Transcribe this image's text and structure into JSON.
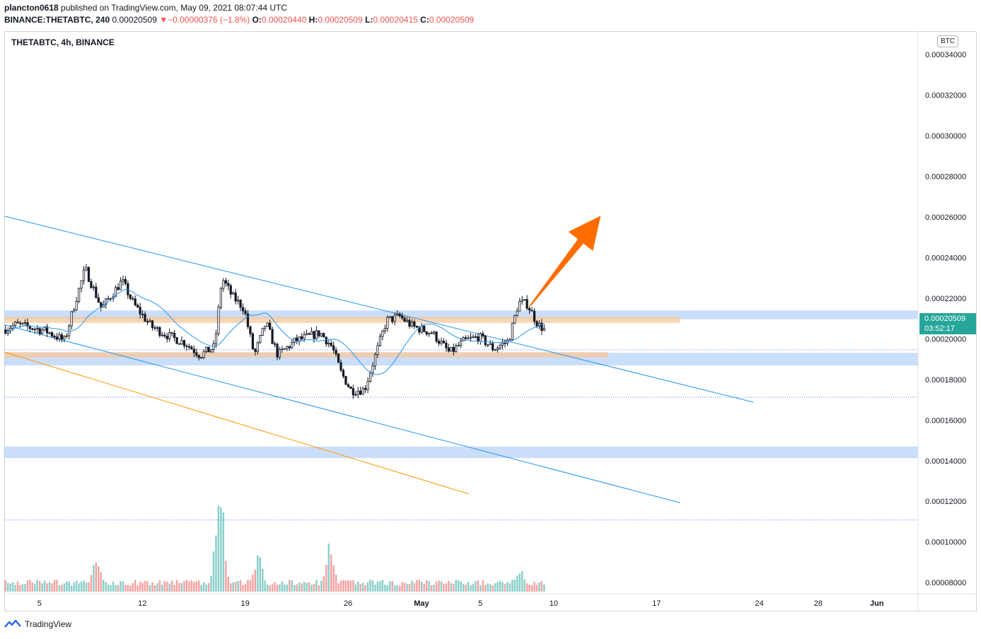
{
  "header": {
    "publisher": "plancton0618",
    "published_text": "published on TradingView.com, May 09, 2021 08:07:44 UTC",
    "pair": "BINANCE:THETABTC, 240",
    "last": "0.00020509",
    "change_arrow": "▼",
    "change": "−0.00000376 (−1.8%)",
    "o_label": "O:",
    "o_value": "0.00020440",
    "h_label": "H:",
    "h_value": "0.00020509",
    "l_label": "L:",
    "l_value": "0.00020415",
    "c_label": "C:",
    "c_value": "0.00020509"
  },
  "chart_title": "THETABTC, 4h, BINANCE",
  "currency_badge": "BTC",
  "price_tag": {
    "value": "0.00020509",
    "countdown": "03:52:17"
  },
  "footer": {
    "brand": "TradingView",
    "icon": "tradingview-logo-icon"
  },
  "colors": {
    "up": "#26a69a",
    "down": "#ef5350",
    "ma": "#2196f3",
    "channel": "#2196f3",
    "orange_line": "#ff9800",
    "arrow": "#ff6d00",
    "zone_blue": "#a9c8f5",
    "zone_orange": "#f5c89e"
  },
  "chart_data": {
    "type": "candlestick",
    "title": "THETABTC, 4h, BINANCE",
    "y_tick_labels": [
      "0.00034000",
      "0.00032000",
      "0.00030000",
      "0.00028000",
      "0.00026000",
      "0.00024000",
      "0.00022000",
      "0.00020000",
      "0.00018000",
      "0.00016000",
      "0.00014000",
      "0.00012000",
      "0.00010000",
      "0.00008000"
    ],
    "y_ticks": [
      0.00034,
      0.00032,
      0.0003,
      0.00028,
      0.00026,
      0.00024,
      0.00022,
      0.0002,
      0.00018,
      0.00016,
      0.00014,
      0.00012,
      0.0001,
      8e-05
    ],
    "ylim": [
      7.45e-05,
      0.0003515
    ],
    "x_tick_labels": [
      "5",
      "12",
      "19",
      "26",
      "May",
      "5",
      "10",
      "17",
      "24",
      "28",
      "Jun"
    ],
    "x_ticks_day": [
      5,
      12,
      19,
      26,
      31,
      35,
      40,
      47,
      54,
      58,
      62
    ],
    "xlim_day": [
      2.6,
      64.8
    ],
    "price_zones": [
      {
        "type": "support-resistance",
        "from": 0.00020965,
        "to": 0.000214,
        "color": "blue",
        "start_day": 2.6
      },
      {
        "type": "support-resistance",
        "from": 0.0001869,
        "to": 0.0001931,
        "color": "blue",
        "start_day": 2.6
      },
      {
        "type": "support-resistance",
        "from": 0.0001413,
        "to": 0.000147,
        "color": "blue",
        "start_day": 2.6
      },
      {
        "type": "highlight",
        "from": 0.00020785,
        "to": 0.000211,
        "color": "orange",
        "start_day": 2.6,
        "end_day": 48.6
      },
      {
        "type": "highlight",
        "from": 0.00019075,
        "to": 0.0001935,
        "color": "orange",
        "start_day": 2.6,
        "end_day": 43.7
      }
    ],
    "dotted_levels": [
      0.0001946,
      0.00017125,
      0.0001108
    ],
    "trendlines": [
      {
        "name": "channel-upper",
        "points": [
          [
            2.6,
            0.0002604
          ],
          [
            53.6,
            0.0001688
          ]
        ],
        "color": "blue"
      },
      {
        "name": "channel-lower",
        "points": [
          [
            2.6,
            0.0002069
          ],
          [
            48.6,
            0.0001193
          ]
        ],
        "color": "blue"
      },
      {
        "name": "orange-line",
        "points": [
          [
            2.6,
            0.0001935
          ],
          [
            34.2,
            0.0001237
          ]
        ],
        "color": "orange"
      }
    ],
    "projection_arrow": {
      "from": [
        38.4,
        0.0002163
      ],
      "to": [
        43.2,
        0.0002606
      ]
    },
    "ohlc_path": [
      [
        2.6,
        0.0002045
      ],
      [
        3.5,
        0.000207
      ],
      [
        5.5,
        0.000204
      ],
      [
        6.8,
        0.000199
      ],
      [
        7.5,
        0.000218
      ],
      [
        8.2,
        0.0002345
      ],
      [
        9.3,
        0.000215
      ],
      [
        10.7,
        0.0002285
      ],
      [
        11.5,
        0.000217
      ],
      [
        12.7,
        0.000206
      ],
      [
        14.0,
        0.000201
      ],
      [
        15.0,
        0.000198
      ],
      [
        16.0,
        0.000192
      ],
      [
        17.0,
        0.000196
      ],
      [
        17.5,
        0.00023
      ],
      [
        18.2,
        0.000221
      ],
      [
        19.0,
        0.000215
      ],
      [
        19.7,
        0.000192
      ],
      [
        20.5,
        0.000208
      ],
      [
        21.3,
        0.000192
      ],
      [
        22.5,
        0.000199
      ],
      [
        24.2,
        0.000203
      ],
      [
        25.0,
        0.000196
      ],
      [
        25.6,
        0.0001835
      ],
      [
        26.3,
        0.0001745
      ],
      [
        27.2,
        0.000175
      ],
      [
        28.0,
        0.000193
      ],
      [
        28.7,
        0.000209
      ],
      [
        29.6,
        0.000211
      ],
      [
        30.5,
        0.000206
      ],
      [
        31.8,
        0.000203
      ],
      [
        33.0,
        0.000193
      ],
      [
        34.0,
        0.000199
      ],
      [
        35.0,
        0.000201
      ],
      [
        36.0,
        0.000195
      ],
      [
        37.0,
        0.000199
      ],
      [
        37.7,
        0.000218
      ],
      [
        38.3,
        0.000217
      ],
      [
        39.0,
        0.000207
      ],
      [
        39.4,
        0.000205
      ]
    ],
    "ohlc_seed": 7,
    "candle_interval_hours": 4,
    "volume": {
      "ylim_price_units": [
        7.45e-05,
        0.00014
      ],
      "spike_days": [
        [
          17.2,
          0.000138
        ],
        [
          17.0,
          0.000106
        ],
        [
          24.7,
          0.000102
        ],
        [
          8.8,
          9.65e-05
        ],
        [
          19.8,
          9.6e-05
        ],
        [
          37.6,
          8.75e-05
        ]
      ],
      "base_level": 7.85e-05
    },
    "moving_average": {
      "color": "blue",
      "period": 20
    },
    "grid": false,
    "legend": "none"
  }
}
